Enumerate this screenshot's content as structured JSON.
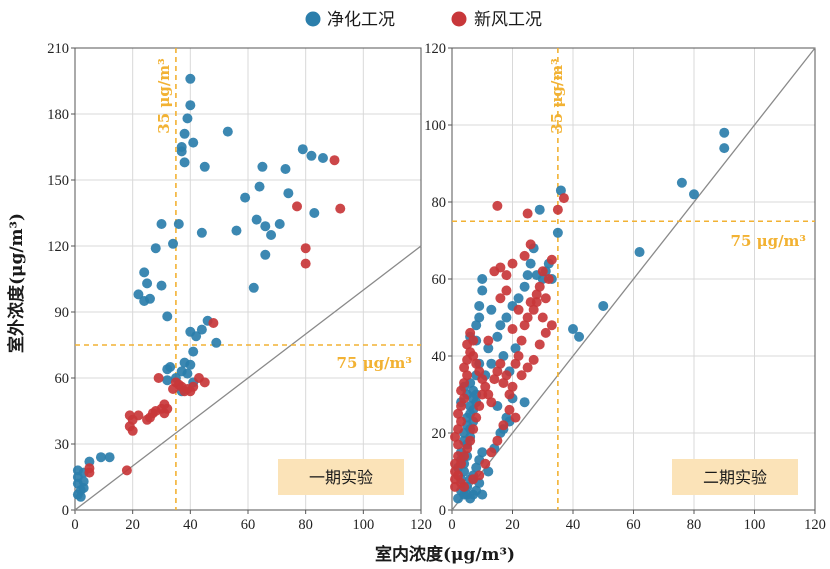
{
  "colors": {
    "purify": "#2b7eab",
    "freshair": "#c8373a",
    "reference": "#f2b233",
    "label_box": "#fbe3b8",
    "diagonal": "#8a8a8a",
    "grid": "#d9d9d9"
  },
  "legend": {
    "purify": "净化工况",
    "freshair": "新风工况"
  },
  "axes": {
    "xlabel": "室内浓度(μg/m³)",
    "ylabel": "室外浓度(μg/m³)"
  },
  "chart_data": [
    {
      "type": "scatter",
      "title": "一期实验",
      "xlim": [
        0,
        120
      ],
      "ylim": [
        0,
        210
      ],
      "xticks": [
        "0",
        "20",
        "40",
        "60",
        "80",
        "100",
        "120"
      ],
      "yticks": [
        "0",
        "30",
        "60",
        "90",
        "120",
        "150",
        "180",
        "210"
      ],
      "grid": true,
      "ref_vertical": {
        "x": 35,
        "label": "35 μg/m³"
      },
      "ref_horizontal": {
        "y": 75,
        "label": "75 μg/m³"
      },
      "diagonal": "y = x",
      "series": [
        {
          "name": "净化工况",
          "points": [
            [
              1,
              18
            ],
            [
              1,
              15
            ],
            [
              1,
              12
            ],
            [
              2,
              9
            ],
            [
              1,
              7
            ],
            [
              2,
              6
            ],
            [
              3,
              10
            ],
            [
              3,
              13
            ],
            [
              3,
              17
            ],
            [
              5,
              22
            ],
            [
              9,
              24
            ],
            [
              12,
              24
            ],
            [
              22,
              98
            ],
            [
              24,
              108
            ],
            [
              25,
              103
            ],
            [
              24,
              95
            ],
            [
              26,
              96
            ],
            [
              28,
              119
            ],
            [
              30,
              130
            ],
            [
              30,
              102
            ],
            [
              32,
              88
            ],
            [
              34,
              121
            ],
            [
              36,
              130
            ],
            [
              37,
              165
            ],
            [
              37,
              163
            ],
            [
              38,
              171
            ],
            [
              38,
              158
            ],
            [
              39,
              178
            ],
            [
              40,
              196
            ],
            [
              40,
              184
            ],
            [
              41,
              167
            ],
            [
              45,
              156
            ],
            [
              44,
              126
            ],
            [
              53,
              172
            ],
            [
              56,
              127
            ],
            [
              59,
              142
            ],
            [
              62,
              101
            ],
            [
              63,
              132
            ],
            [
              64,
              147
            ],
            [
              65,
              156
            ],
            [
              66,
              116
            ],
            [
              66,
              129
            ],
            [
              68,
              125
            ],
            [
              71,
              130
            ],
            [
              73,
              155
            ],
            [
              74,
              144
            ],
            [
              79,
              164
            ],
            [
              82,
              161
            ],
            [
              83,
              135
            ],
            [
              86,
              160
            ],
            [
              32,
              59
            ],
            [
              32,
              64
            ],
            [
              33,
              65
            ],
            [
              35,
              60
            ],
            [
              37,
              63
            ],
            [
              38,
              67
            ],
            [
              39,
              62
            ],
            [
              40,
              66
            ],
            [
              41,
              72
            ],
            [
              40,
              81
            ],
            [
              42,
              79
            ],
            [
              44,
              82
            ],
            [
              46,
              86
            ],
            [
              49,
              76
            ],
            [
              41,
              58
            ],
            [
              37,
              54
            ]
          ]
        },
        {
          "name": "新风工况",
          "points": [
            [
              5,
              19
            ],
            [
              5,
              17
            ],
            [
              18,
              18
            ],
            [
              19,
              43
            ],
            [
              20,
              41
            ],
            [
              19,
              38
            ],
            [
              20,
              36
            ],
            [
              22,
              43
            ],
            [
              25,
              41
            ],
            [
              26,
              42
            ],
            [
              27,
              44
            ],
            [
              28,
              45
            ],
            [
              29,
              60
            ],
            [
              30,
              46
            ],
            [
              31,
              48
            ],
            [
              31,
              44
            ],
            [
              32,
              46
            ],
            [
              34,
              55
            ],
            [
              35,
              58
            ],
            [
              36,
              57
            ],
            [
              37,
              56
            ],
            [
              38,
              54
            ],
            [
              39,
              55
            ],
            [
              40,
              54
            ],
            [
              41,
              56
            ],
            [
              43,
              60
            ],
            [
              45,
              58
            ],
            [
              48,
              85
            ],
            [
              77,
              138
            ],
            [
              80,
              112
            ],
            [
              80,
              119
            ],
            [
              90,
              159
            ],
            [
              92,
              137
            ]
          ]
        }
      ]
    },
    {
      "type": "scatter",
      "title": "二期实验",
      "xlim": [
        0,
        120
      ],
      "ylim": [
        0,
        120
      ],
      "xticks": [
        "0",
        "20",
        "40",
        "60",
        "80",
        "100",
        "120"
      ],
      "yticks": [
        "0",
        "20",
        "40",
        "60",
        "80",
        "100",
        "120"
      ],
      "grid": true,
      "ref_vertical": {
        "x": 35,
        "label": "35 μg/m³"
      },
      "ref_horizontal": {
        "y": 75,
        "label": "75 μg/m³"
      },
      "diagonal": "y = x",
      "series": [
        {
          "name": "净化工况",
          "points": [
            [
              2,
              3
            ],
            [
              3,
              5
            ],
            [
              3,
              8
            ],
            [
              4,
              10
            ],
            [
              4,
              12
            ],
            [
              5,
              14
            ],
            [
              5,
              17
            ],
            [
              6,
              19
            ],
            [
              6,
              21
            ],
            [
              7,
              23
            ],
            [
              7,
              26
            ],
            [
              8,
              28
            ],
            [
              8,
              30
            ],
            [
              4,
              4
            ],
            [
              5,
              6
            ],
            [
              6,
              8
            ],
            [
              7,
              9
            ],
            [
              8,
              11
            ],
            [
              9,
              13
            ],
            [
              10,
              15
            ],
            [
              4,
              20
            ],
            [
              5,
              24
            ],
            [
              6,
              27
            ],
            [
              7,
              31
            ],
            [
              8,
              35
            ],
            [
              9,
              38
            ],
            [
              8,
              44
            ],
            [
              9,
              50
            ],
            [
              9,
              53
            ],
            [
              10,
              57
            ],
            [
              10,
              60
            ],
            [
              3,
              28
            ],
            [
              4,
              32
            ],
            [
              5,
              30
            ],
            [
              6,
              33
            ],
            [
              7,
              29
            ],
            [
              6,
              45
            ],
            [
              8,
              48
            ],
            [
              3,
              15
            ],
            [
              4,
              18
            ],
            [
              5,
              22
            ],
            [
              6,
              25
            ],
            [
              2,
              11
            ],
            [
              3,
              13
            ],
            [
              7,
              4
            ],
            [
              8,
              5
            ],
            [
              9,
              7
            ],
            [
              10,
              4
            ],
            [
              6,
              3
            ],
            [
              5,
              4
            ],
            [
              12,
              10
            ],
            [
              14,
              16
            ],
            [
              16,
              20
            ],
            [
              17,
              21
            ],
            [
              18,
              24
            ],
            [
              19,
              23
            ],
            [
              15,
              27
            ],
            [
              13,
              52
            ],
            [
              15,
              45
            ],
            [
              16,
              48
            ],
            [
              18,
              50
            ],
            [
              20,
              53
            ],
            [
              22,
              55
            ],
            [
              24,
              58
            ],
            [
              25,
              61
            ],
            [
              26,
              64
            ],
            [
              27,
              68
            ],
            [
              28,
              61
            ],
            [
              29,
              78
            ],
            [
              30,
              60
            ],
            [
              31,
              62
            ],
            [
              32,
              64
            ],
            [
              33,
              60
            ],
            [
              35,
              72
            ],
            [
              36,
              83
            ],
            [
              40,
              47
            ],
            [
              42,
              45
            ],
            [
              50,
              53
            ],
            [
              62,
              67
            ],
            [
              76,
              85
            ],
            [
              80,
              82
            ],
            [
              90,
              98
            ],
            [
              90,
              94
            ],
            [
              24,
              28
            ],
            [
              17,
              40
            ],
            [
              19,
              36
            ],
            [
              21,
              42
            ],
            [
              11,
              35
            ],
            [
              13,
              38
            ],
            [
              12,
              42
            ],
            [
              20,
              29
            ]
          ]
        },
        {
          "name": "新风工况",
          "points": [
            [
              1,
              6
            ],
            [
              1,
              8
            ],
            [
              1,
              10
            ],
            [
              1,
              12
            ],
            [
              2,
              14
            ],
            [
              2,
              17
            ],
            [
              1,
              19
            ],
            [
              2,
              21
            ],
            [
              3,
              23
            ],
            [
              2,
              25
            ],
            [
              3,
              27
            ],
            [
              4,
              29
            ],
            [
              3,
              31
            ],
            [
              4,
              33
            ],
            [
              5,
              35
            ],
            [
              4,
              37
            ],
            [
              5,
              39
            ],
            [
              6,
              41
            ],
            [
              5,
              43
            ],
            [
              6,
              46
            ],
            [
              7,
              44
            ],
            [
              7,
              40
            ],
            [
              8,
              38
            ],
            [
              9,
              36
            ],
            [
              10,
              34
            ],
            [
              11,
              32
            ],
            [
              12,
              30
            ],
            [
              13,
              28
            ],
            [
              14,
              34
            ],
            [
              15,
              36
            ],
            [
              16,
              38
            ],
            [
              17,
              33
            ],
            [
              18,
              35
            ],
            [
              19,
              30
            ],
            [
              20,
              32
            ],
            [
              21,
              38
            ],
            [
              22,
              40
            ],
            [
              23,
              44
            ],
            [
              24,
              48
            ],
            [
              25,
              50
            ],
            [
              26,
              54
            ],
            [
              27,
              52
            ],
            [
              28,
              56
            ],
            [
              29,
              58
            ],
            [
              30,
              62
            ],
            [
              31,
              55
            ],
            [
              32,
              60
            ],
            [
              33,
              65
            ],
            [
              35,
              78
            ],
            [
              15,
              79
            ],
            [
              25,
              77
            ],
            [
              37,
              81
            ],
            [
              14,
              62
            ],
            [
              16,
              55
            ],
            [
              18,
              57
            ],
            [
              20,
              47
            ],
            [
              22,
              52
            ],
            [
              12,
              44
            ],
            [
              10,
              30
            ],
            [
              9,
              27
            ],
            [
              8,
              24
            ],
            [
              7,
              21
            ],
            [
              6,
              18
            ],
            [
              5,
              16
            ],
            [
              4,
              14
            ],
            [
              3,
              12
            ],
            [
              2,
              9
            ],
            [
              3,
              7
            ],
            [
              4,
              6
            ],
            [
              7,
              8
            ],
            [
              9,
              9
            ],
            [
              11,
              12
            ],
            [
              13,
              15
            ],
            [
              15,
              18
            ],
            [
              17,
              22
            ],
            [
              19,
              26
            ],
            [
              21,
              24
            ],
            [
              23,
              35
            ],
            [
              25,
              37
            ],
            [
              27,
              39
            ],
            [
              29,
              43
            ],
            [
              31,
              46
            ],
            [
              33,
              48
            ],
            [
              28,
              54
            ],
            [
              30,
              50
            ],
            [
              24,
              66
            ],
            [
              26,
              69
            ],
            [
              20,
              64
            ],
            [
              18,
              61
            ],
            [
              16,
              63
            ]
          ]
        }
      ]
    }
  ]
}
